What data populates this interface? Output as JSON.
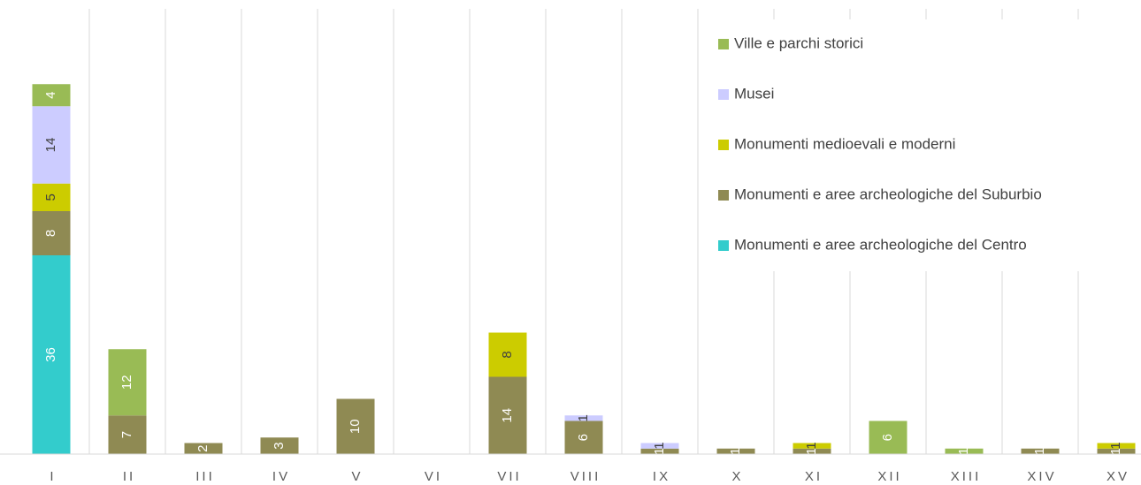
{
  "chart_data": {
    "type": "bar",
    "stacked": true,
    "categories": [
      "I",
      "II",
      "III",
      "IV",
      "V",
      "VI",
      "VII",
      "VIII",
      "IX",
      "X",
      "XI",
      "XII",
      "XIII",
      "XIV",
      "XV"
    ],
    "series": [
      {
        "name": "Monumenti e aree archeologiche del Centro",
        "color": "#33cccc",
        "values": [
          36,
          null,
          null,
          null,
          null,
          null,
          null,
          null,
          null,
          null,
          null,
          null,
          null,
          null,
          null
        ]
      },
      {
        "name": "Monumenti e aree archeologiche del Suburbio",
        "color": "#8f8a53",
        "values": [
          8,
          7,
          2,
          3,
          10,
          null,
          14,
          6,
          1,
          1,
          1,
          null,
          null,
          1,
          1
        ]
      },
      {
        "name": "Monumenti medioevali e moderni",
        "color": "#cccc00",
        "values": [
          5,
          null,
          null,
          null,
          null,
          null,
          8,
          null,
          null,
          null,
          1,
          null,
          null,
          null,
          1
        ]
      },
      {
        "name": "Musei",
        "color": "#ccccff",
        "values": [
          14,
          null,
          null,
          null,
          null,
          null,
          null,
          1,
          1,
          null,
          null,
          null,
          null,
          null,
          null
        ]
      },
      {
        "name": "Ville e parchi storici",
        "color": "#99bb55",
        "values": [
          4,
          12,
          null,
          null,
          null,
          null,
          null,
          null,
          null,
          null,
          null,
          6,
          1,
          null,
          null
        ]
      }
    ],
    "ylim": [
      0,
      80
    ]
  }
}
